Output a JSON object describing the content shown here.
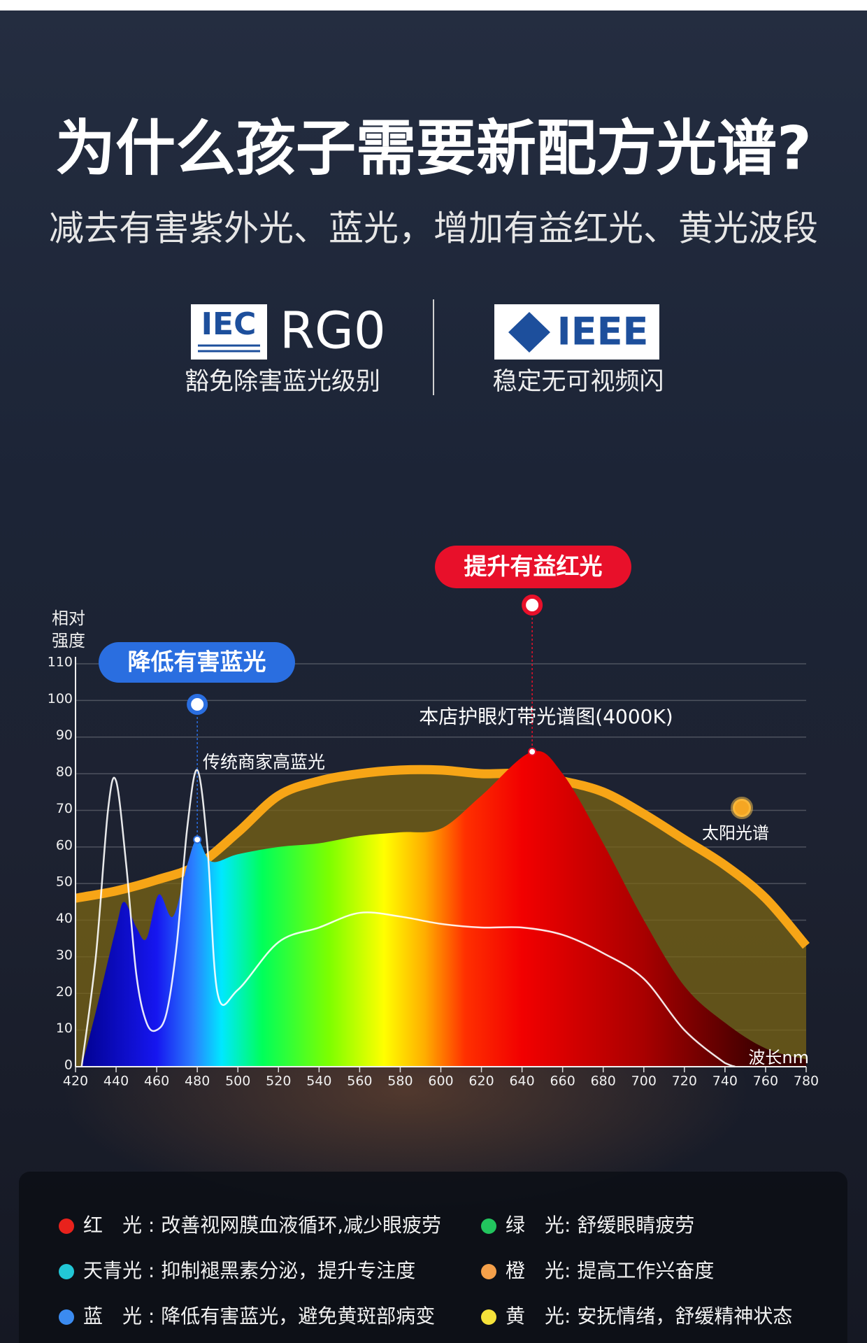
{
  "header": {
    "title": "为什么孩子需要新配方光谱?",
    "subtitle": "减去有害紫外光、蓝光，增加有益红光、黄光波段"
  },
  "badges": [
    {
      "logo": "IEC",
      "label": "RG0",
      "caption": "豁免除害蓝光级别"
    },
    {
      "logo": "IEEE",
      "caption": "稳定无可视频闪"
    }
  ],
  "chart_data": {
    "type": "line",
    "ylabel": "相对强度",
    "xlabel": "波长nm",
    "callouts": [
      "降低有害蓝光",
      "提升有益红光"
    ],
    "xlim": [
      420,
      780
    ],
    "xticks": [
      420,
      440,
      460,
      480,
      500,
      520,
      540,
      560,
      580,
      600,
      620,
      640,
      660,
      680,
      700,
      720,
      740,
      760,
      780
    ],
    "ylim": [
      0,
      110
    ],
    "yticks": [
      0,
      10,
      20,
      30,
      40,
      50,
      60,
      70,
      80,
      90,
      100,
      110
    ],
    "grid": true,
    "series": [
      {
        "name": "太阳光谱",
        "color": "#f7a516",
        "x": [
          420,
          440,
          460,
          480,
          500,
          520,
          540,
          560,
          580,
          600,
          620,
          640,
          660,
          680,
          700,
          720,
          740,
          760,
          780
        ],
        "values": [
          46,
          48,
          51,
          55,
          64,
          74,
          78,
          80,
          81,
          81,
          80,
          80,
          78,
          75,
          69,
          62,
          55,
          46,
          33
        ]
      },
      {
        "name": "本店护眼灯带光谱图(4000K)",
        "x": [
          423,
          430,
          440,
          444,
          450,
          455,
          461,
          468,
          475,
          480,
          487,
          500,
          520,
          540,
          560,
          580,
          600,
          620,
          645,
          660,
          680,
          700,
          720,
          740,
          760,
          780
        ],
        "values": [
          0,
          15,
          38,
          45,
          38,
          35,
          47,
          41,
          55,
          62,
          56,
          58,
          60,
          61,
          63,
          64,
          65,
          74,
          86,
          80,
          61,
          40,
          22,
          12,
          5,
          2
        ]
      },
      {
        "name": "传统商家高蓝光",
        "color": "#ffffff",
        "x": [
          423,
          430,
          436,
          440,
          445,
          450,
          455,
          460,
          465,
          470,
          475,
          480,
          485,
          490,
          500,
          520,
          540,
          560,
          580,
          600,
          620,
          640,
          660,
          680,
          700,
          720,
          740,
          745
        ],
        "values": [
          0,
          30,
          70,
          78,
          55,
          25,
          12,
          10,
          15,
          34,
          65,
          81,
          60,
          20,
          21,
          34,
          38,
          42,
          41,
          39,
          38,
          38,
          36,
          31,
          24,
          10,
          1,
          0
        ]
      }
    ]
  },
  "legend": {
    "items": [
      {
        "text": "红　光 : 改善视网膜血液循环,减少眼疲劳",
        "color": "#e8221c"
      },
      {
        "text": "绿　光: 舒缓眼睛疲劳",
        "color": "#22c55e"
      },
      {
        "text": "天青光 : 抑制褪黑素分泌，提升专注度",
        "color": "#22c7d6"
      },
      {
        "text": "橙　光: 提高工作兴奋度",
        "color": "#f4a04a"
      },
      {
        "text": "蓝　光 : 降低有害蓝光，避免黄斑部病变",
        "color": "#3b8bf0"
      },
      {
        "text": "黄　光: 安抚情绪，舒缓精神状态",
        "color": "#f5e23a"
      }
    ]
  }
}
